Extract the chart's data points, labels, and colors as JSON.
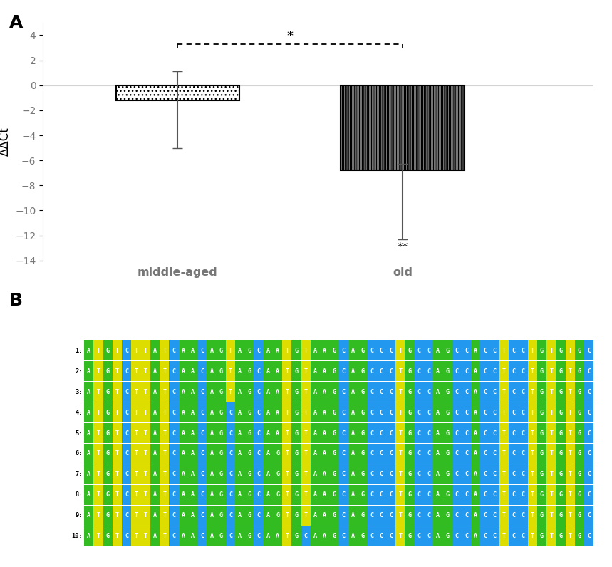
{
  "bar_values": [
    -1.2,
    -6.8
  ],
  "bar_errors": [
    [
      2.3,
      3.8
    ],
    [
      0.5,
      5.5
    ]
  ],
  "bar_labels": [
    "middle-aged",
    "old"
  ],
  "ylabel": "ΔΔCt",
  "ylim": [
    -14,
    5
  ],
  "yticks": [
    4,
    2,
    0,
    -2,
    -4,
    -6,
    -8,
    -10,
    -12,
    -14
  ],
  "positions": [
    1,
    2
  ],
  "bar_width": 0.55,
  "xlim": [
    0.4,
    2.85
  ],
  "sig_line_y": 3.3,
  "panel_a_label": "A",
  "panel_b_label": "B",
  "sequences": [
    {
      "label": "1:",
      "seq": "ATGTCTTATCAACAGTAGCAATGTAAGCAGCCCTGCCAGCCACCTCCTGTGTGC"
    },
    {
      "label": "2:",
      "seq": "ATGTCTTATCAACAGTAGCAATGTAAGCAGCCCTGCCAGCCACCTCCTGTGTGC"
    },
    {
      "label": "3:",
      "seq": "ATGTCTTATCAACAGTAGCAATGTAAGCAGCCCTGCCAGCCACCTCCTGTGTGC"
    },
    {
      "label": "4:",
      "seq": "ATGTCTTATCAACAGCAGCAATGTAAGCAGCCCTGCCAGCCACCTCCTGTGTGC"
    },
    {
      "label": "5:",
      "seq": "ATGTCTTATCAACAGCAGCAATGTAAGCAGCCCTGCCAGCCACCTCCTGTGTGC"
    },
    {
      "label": "6:",
      "seq": "ATGTCTTATCAACAGCAGCAGTGTAAGCAGCCCTGCCAGCCACCTCCTGTGTGC"
    },
    {
      "label": "7:",
      "seq": "ATGTCTTATCAACAGCAGCAGTGTAAGCAGCCCTGCCAGCCACCTCCTGTGTGC"
    },
    {
      "label": "8:",
      "seq": "ATGTCTTATCAACAGCAGCAGTGTAAGCAGCCCTGCCAGCCACCTCCTGTGTGC"
    },
    {
      "label": "9:",
      "seq": "ATGTCTTATCAACAGCAGCAGTGTAAGCAGCCCTGCCAGCCACCTCCTGTGTGC"
    },
    {
      "label": "10:",
      "seq": "ATGTCTTATCAACAGCAGCAATGCAAGCAGCCCTGCCAGCCACCTCCTGTGTGC"
    }
  ],
  "color_map": {
    "A": "#33BB22",
    "T": "#DDDD00",
    "G": "#33BB22",
    "C": "#2299EE"
  }
}
